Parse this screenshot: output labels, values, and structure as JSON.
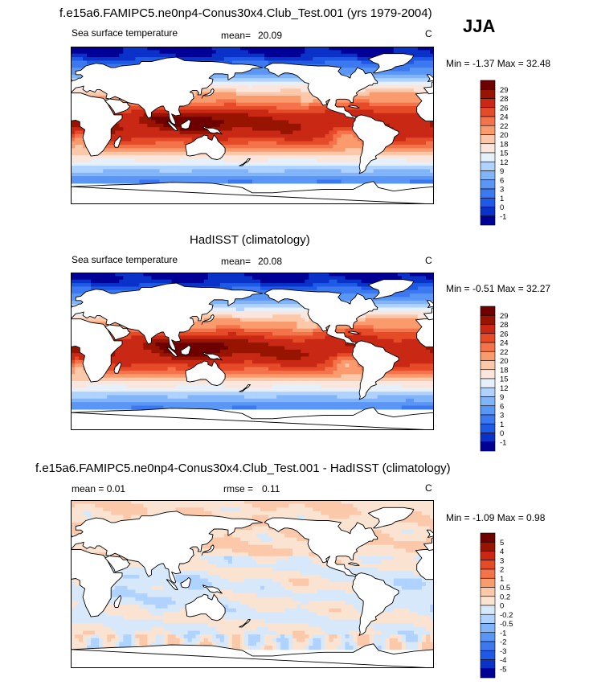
{
  "season": "JJA",
  "main_title": "f.e15a6.FAMIPC5.ne0np4-Conus30x4.Club_Test.001 (yrs 1979-2004)",
  "panels": [
    {
      "id": "model",
      "title": "",
      "left_label": "Sea surface temperature",
      "stat_label": "mean=",
      "stat_value": "20.09",
      "units": "C",
      "stat_text": "Min =  -1.37 Max =  32.48",
      "colorbar": [
        "29",
        "28",
        "26",
        "24",
        "22",
        "20",
        "18",
        "15",
        "12",
        "9",
        "6",
        "3",
        "1",
        "0",
        "-1"
      ]
    },
    {
      "id": "obs",
      "title": "HadISST (climatology)",
      "left_label": "Sea surface temperature",
      "stat_label": "mean=",
      "stat_value": "20.08",
      "units": "C",
      "stat_text": "Min =  -0.51 Max =  32.27",
      "colorbar": [
        "29",
        "28",
        "26",
        "24",
        "22",
        "20",
        "18",
        "15",
        "12",
        "9",
        "6",
        "3",
        "1",
        "0",
        "-1"
      ]
    },
    {
      "id": "diff",
      "title": "f.e15a6.FAMIPC5.ne0np4-Conus30x4.Club_Test.001 - HadISST (climatology)",
      "left_label": "mean =   0.01",
      "stat_label": "rmse =",
      "stat_value": "0.11",
      "units": "C",
      "stat_text": "Min =  -1.09 Max =    0.98",
      "colorbar": [
        "5",
        "4",
        "3",
        "2",
        "1",
        "0.5",
        "0.2",
        "0",
        "-0.2",
        "-0.5",
        "-1",
        "-2",
        "-3",
        "-4",
        "-5"
      ]
    }
  ],
  "colors": {
    "sst_scale": [
      "#000096",
      "#0a32c8",
      "#1e5ae6",
      "#3c78f0",
      "#5a96f5",
      "#82b4fa",
      "#afd2ff",
      "#e6f0fa",
      "#fae6dc",
      "#fcc8aa",
      "#fa9b6e",
      "#f5734b",
      "#e64b28",
      "#c82814",
      "#961400",
      "#6e0000"
    ],
    "diff_scale": [
      "#000096",
      "#0a32c8",
      "#1e5ae6",
      "#3c78f0",
      "#5a96f5",
      "#82b4fa",
      "#afd2ff",
      "#d7e8fb",
      "#fbe3d2",
      "#fcc8aa",
      "#fa9b6e",
      "#f5734b",
      "#e64b28",
      "#c82814",
      "#961400",
      "#6e0000"
    ],
    "land": "#ffffff",
    "coast": "#000000"
  },
  "chart_data": [
    {
      "type": "heatmap",
      "title": "Sea surface temperature",
      "field": "model SST JJA",
      "units": "C",
      "mean": 20.09,
      "min": -1.37,
      "max": 32.48,
      "levels": [
        -1,
        0,
        1,
        3,
        6,
        9,
        12,
        15,
        18,
        20,
        22,
        24,
        26,
        28,
        29
      ],
      "xlim": [
        0,
        360
      ],
      "ylim": [
        -90,
        90
      ]
    },
    {
      "type": "heatmap",
      "title": "HadISST (climatology)",
      "field": "observed SST JJA",
      "units": "C",
      "mean": 20.08,
      "min": -0.51,
      "max": 32.27,
      "levels": [
        -1,
        0,
        1,
        3,
        6,
        9,
        12,
        15,
        18,
        20,
        22,
        24,
        26,
        28,
        29
      ],
      "xlim": [
        0,
        360
      ],
      "ylim": [
        -90,
        90
      ]
    },
    {
      "type": "heatmap",
      "title": "f.e15a6.FAMIPC5.ne0np4-Conus30x4.Club_Test.001 - HadISST (climatology)",
      "field": "model minus observed SST",
      "units": "C",
      "mean": 0.01,
      "rmse": 0.11,
      "min": -1.09,
      "max": 0.98,
      "levels": [
        -5,
        -4,
        -3,
        -2,
        -1,
        -0.5,
        -0.2,
        0,
        0.2,
        0.5,
        1,
        2,
        3,
        4,
        5
      ],
      "xlim": [
        0,
        360
      ],
      "ylim": [
        -90,
        90
      ]
    }
  ]
}
